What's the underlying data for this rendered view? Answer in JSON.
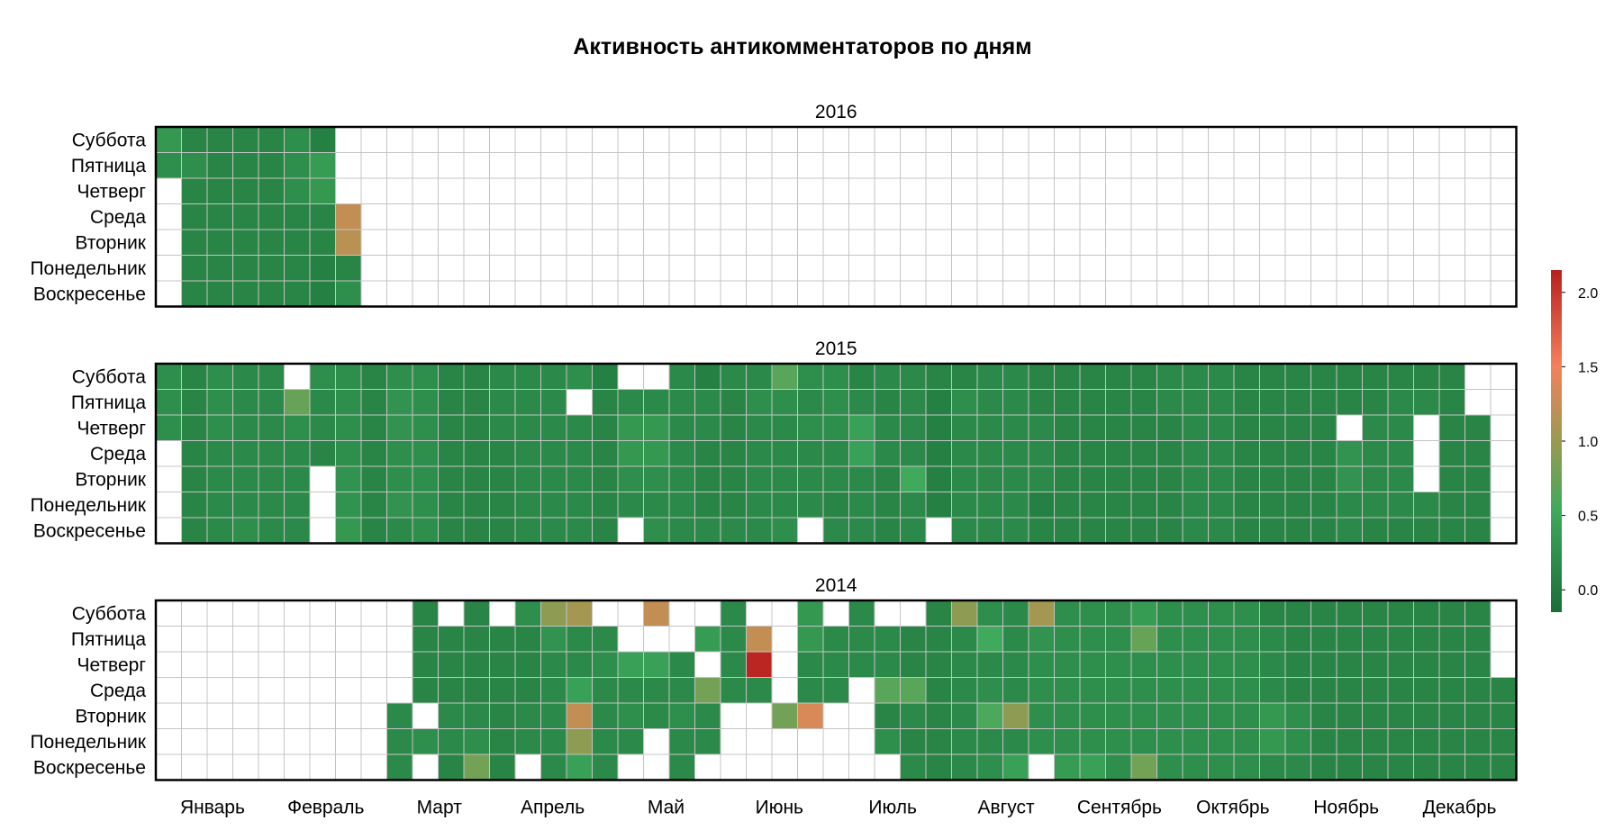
{
  "chart_data": {
    "type": "heatmap",
    "title": "Активность антикомментаторов по дням",
    "row_labels": [
      "Суббота",
      "Пятница",
      "Четверг",
      "Среда",
      "Вторник",
      "Понедельник",
      "Воскресенье"
    ],
    "month_labels": [
      "Январь",
      "Февраль",
      "Март",
      "Апрель",
      "Май",
      "Июнь",
      "Июль",
      "Август",
      "Сентябрь",
      "Октябрь",
      "Ноябрь",
      "Декабрь"
    ],
    "colorbar": {
      "min": -0.15,
      "max": 2.15,
      "ticks": [
        "0.0",
        "0.5",
        "1.0",
        "1.5",
        "2.0"
      ],
      "tick_values": [
        0,
        0.5,
        1,
        1.5,
        2
      ]
    },
    "colors": {
      "low": "#1a6e39",
      "mid": "#3faa5c",
      "olive": "#9a9a50",
      "orange": "#f5805a",
      "high": "#b8201e",
      "empty": "#ffffff",
      "grid": "#c4c4c4"
    },
    "value_notes": "Values are the approx. daily activity level read from the colorbar. Panels list weeks left to right; each week has 7 values ordered Sat..Sun (top to bottom); null = no data / outside year.",
    "panels": [
      {
        "year": "2016",
        "weeks": [
          [
            0.3,
            0.2,
            null,
            null,
            null,
            null,
            null
          ],
          [
            0.1,
            0.2,
            0.1,
            0.1,
            0.1,
            0.1,
            0.1
          ],
          [
            0.1,
            0.1,
            0.1,
            0.1,
            0.1,
            0.1,
            0.1
          ],
          [
            0.1,
            0.1,
            0.1,
            0.1,
            0.1,
            0.1,
            0.1
          ],
          [
            0.1,
            0.1,
            0.1,
            0.1,
            0.1,
            0.1,
            0.1
          ],
          [
            0.2,
            0.2,
            0.2,
            0.1,
            0.1,
            0.1,
            0.1
          ],
          [
            0.05,
            0.35,
            0.3,
            0.1,
            0.1,
            0.05,
            0.05
          ],
          [
            null,
            null,
            null,
            1.05,
            1.0,
            0.1,
            0.2
          ]
        ]
      },
      {
        "year": "2015",
        "weeks": [
          [
            0.2,
            0.2,
            0.2,
            null,
            null,
            null,
            null
          ],
          [
            0.1,
            0.1,
            0.1,
            0.1,
            0.1,
            0.1,
            0.1
          ],
          [
            0.2,
            0.2,
            0.2,
            0.15,
            0.15,
            0.15,
            0.15
          ],
          [
            0.15,
            0.15,
            0.15,
            0.15,
            0.15,
            0.15,
            0.2
          ],
          [
            0.15,
            0.15,
            0.15,
            0.15,
            0.15,
            0.15,
            0.15
          ],
          [
            null,
            0.65,
            0.2,
            0.15,
            0.15,
            0.15,
            0.15
          ],
          [
            0.2,
            0.15,
            0.15,
            0.1,
            null,
            null,
            null
          ],
          [
            0.2,
            0.2,
            0.2,
            0.2,
            0.25,
            0.25,
            0.3
          ],
          [
            0.1,
            0.1,
            0.1,
            0.1,
            0.1,
            0.1,
            0.1
          ],
          [
            0.2,
            0.25,
            0.25,
            0.2,
            0.2,
            0.25,
            0.15
          ],
          [
            0.2,
            0.2,
            0.2,
            0.2,
            0.2,
            0.2,
            0.2
          ],
          [
            0.1,
            0.1,
            0.1,
            0.1,
            0.1,
            0.1,
            0.1
          ],
          [
            0.1,
            0.1,
            0.1,
            0.1,
            0.1,
            0.1,
            0.1
          ],
          [
            0.15,
            0.15,
            0.15,
            0.1,
            0.1,
            0.1,
            0.1
          ],
          [
            0.15,
            0.15,
            0.15,
            0.15,
            0.15,
            0.15,
            0.15
          ],
          [
            0.15,
            0.15,
            0.15,
            0.15,
            0.15,
            0.15,
            0.15
          ],
          [
            0.2,
            null,
            0.15,
            0.15,
            0.15,
            0.15,
            0.15
          ],
          [
            0.05,
            0.1,
            0.1,
            0.1,
            0.1,
            0.1,
            0.1
          ],
          [
            null,
            0.15,
            0.3,
            0.3,
            0.2,
            0.15,
            null
          ],
          [
            null,
            0.15,
            0.3,
            0.3,
            0.2,
            0.15,
            0.2
          ],
          [
            0.15,
            0.15,
            0.15,
            0.15,
            0.15,
            0.15,
            0.15
          ],
          [
            0.05,
            0.15,
            0.15,
            0.1,
            0.1,
            0.1,
            0.15
          ],
          [
            0.15,
            0.1,
            0.1,
            0.1,
            0.1,
            0.1,
            0.15
          ],
          [
            0.15,
            0.2,
            0.15,
            0.15,
            0.15,
            0.15,
            0.15
          ],
          [
            0.6,
            0.2,
            0.15,
            0.15,
            0.15,
            0.15,
            0.2
          ],
          [
            0.2,
            0.15,
            0.2,
            0.15,
            0.15,
            0.15,
            null
          ],
          [
            0.2,
            0.2,
            0.2,
            0.15,
            0.15,
            0.1,
            0.15
          ],
          [
            0.1,
            0.15,
            0.4,
            0.4,
            0.15,
            0.15,
            0.15
          ],
          [
            0.15,
            0.1,
            0.15,
            0.15,
            0.1,
            0.1,
            0.1
          ],
          [
            0.15,
            0.15,
            0.15,
            0.15,
            0.5,
            0.15,
            0.15
          ],
          [
            0.1,
            0.05,
            0.05,
            0.05,
            0.05,
            0.05,
            null
          ],
          [
            0.1,
            0.2,
            0.15,
            0.15,
            0.15,
            0.15,
            0.15
          ],
          [
            0.15,
            0.15,
            0.15,
            0.15,
            0.15,
            0.15,
            0.15
          ],
          [
            0.15,
            0.15,
            0.15,
            0.15,
            0.15,
            0.15,
            0.15
          ],
          [
            0.1,
            0.1,
            0.15,
            0.15,
            0.15,
            0.05,
            0.1
          ],
          [
            0.1,
            0.1,
            0.1,
            0.1,
            0.1,
            0.1,
            0.1
          ],
          [
            0.1,
            0.1,
            0.1,
            0.1,
            0.1,
            0.1,
            0.1
          ],
          [
            0.1,
            0.1,
            0.1,
            0.1,
            0.1,
            0.1,
            0.1
          ],
          [
            0.1,
            0.1,
            0.1,
            0.1,
            0.1,
            0.1,
            0.1
          ],
          [
            0.15,
            0.15,
            0.1,
            0.1,
            0.1,
            0.1,
            0.1
          ],
          [
            0.15,
            0.15,
            0.15,
            0.15,
            0.15,
            0.15,
            0.15
          ],
          [
            0.15,
            0.15,
            0.15,
            0.15,
            0.15,
            0.15,
            0.15
          ],
          [
            0.1,
            0.1,
            0.1,
            0.1,
            0.1,
            0.1,
            0.1
          ],
          [
            0.1,
            0.1,
            0.1,
            0.1,
            0.1,
            0.1,
            0.1
          ],
          [
            0.1,
            0.1,
            0.1,
            0.1,
            0.1,
            0.1,
            0.1
          ],
          [
            0.1,
            0.1,
            0.1,
            0.1,
            0.1,
            0.1,
            0.1
          ],
          [
            0.1,
            0.1,
            null,
            0.25,
            0.25,
            0.15,
            0.15
          ],
          [
            0.1,
            0.1,
            0.15,
            0.15,
            0.15,
            0.15,
            0.1
          ],
          [
            0.1,
            0.15,
            0.15,
            0.15,
            0.15,
            0.15,
            0.1
          ],
          [
            0.1,
            0.15,
            null,
            null,
            null,
            0.15,
            0.1
          ],
          [
            0.1,
            0.1,
            0.1,
            0.1,
            0.1,
            0.1,
            0.1
          ],
          [
            null,
            null,
            0.1,
            0.1,
            0.1,
            0.1,
            0.1
          ]
        ]
      },
      {
        "year": "2014",
        "weeks": [
          [
            null,
            null,
            null,
            null,
            null,
            null,
            null
          ],
          [
            null,
            null,
            null,
            null,
            null,
            null,
            null
          ],
          [
            null,
            null,
            null,
            null,
            null,
            null,
            null
          ],
          [
            null,
            null,
            null,
            null,
            null,
            null,
            null
          ],
          [
            null,
            null,
            null,
            null,
            null,
            null,
            null
          ],
          [
            null,
            null,
            null,
            null,
            null,
            null,
            null
          ],
          [
            null,
            null,
            null,
            null,
            null,
            null,
            null
          ],
          [
            null,
            null,
            null,
            null,
            null,
            null,
            null
          ],
          [
            null,
            null,
            null,
            null,
            null,
            null,
            null
          ],
          [
            null,
            null,
            null,
            null,
            0.15,
            0.15,
            0.15
          ],
          [
            0.1,
            0.1,
            0.1,
            0.1,
            null,
            0.2,
            null
          ],
          [
            null,
            0.1,
            0.1,
            0.1,
            0.15,
            0.15,
            0.1
          ],
          [
            0.1,
            0.1,
            0.1,
            0.1,
            0.15,
            0.2,
            0.7
          ],
          [
            null,
            0.1,
            0.1,
            0.1,
            0.1,
            0.1,
            0.1
          ],
          [
            0.2,
            0.1,
            0.1,
            0.1,
            0.15,
            0.15,
            null
          ],
          [
            0.8,
            0.25,
            0.15,
            0.15,
            0.15,
            0.15,
            0.15
          ],
          [
            0.9,
            0.15,
            0.15,
            0.4,
            1.05,
            0.8,
            0.4
          ],
          [
            null,
            0.15,
            0.2,
            0.15,
            0.15,
            0.15,
            0.15
          ],
          [
            null,
            null,
            0.4,
            0.15,
            0.2,
            0.15,
            null
          ],
          [
            1.05,
            null,
            0.4,
            0.15,
            0.15,
            null,
            null
          ],
          [
            null,
            null,
            0.15,
            0.15,
            0.2,
            0.15,
            0.15
          ],
          [
            null,
            0.35,
            null,
            0.7,
            0.15,
            0.15,
            null
          ],
          [
            0.15,
            0.15,
            0.15,
            0.15,
            null,
            null,
            null
          ],
          [
            null,
            1.05,
            2.1,
            0.15,
            null,
            null,
            null
          ],
          [
            null,
            null,
            null,
            null,
            0.7,
            null,
            null
          ],
          [
            0.3,
            0.3,
            0.15,
            0.15,
            1.15,
            null,
            null
          ],
          [
            null,
            0.15,
            0.15,
            0.15,
            null,
            null,
            null
          ],
          [
            0.15,
            0.15,
            0.15,
            null,
            null,
            null,
            null
          ],
          [
            null,
            0.15,
            0.15,
            0.6,
            0.1,
            0.2,
            null
          ],
          [
            null,
            0.1,
            0.1,
            0.6,
            0.15,
            0.1,
            0.15
          ],
          [
            0.1,
            0.1,
            0.1,
            0.1,
            0.1,
            0.1,
            0.1
          ],
          [
            0.8,
            0.15,
            0.15,
            0.15,
            0.15,
            0.15,
            0.15
          ],
          [
            0.2,
            0.5,
            0.15,
            0.2,
            0.55,
            0.15,
            0.2
          ],
          [
            0.15,
            0.15,
            0.15,
            0.15,
            0.8,
            0.15,
            0.4
          ],
          [
            0.9,
            0.25,
            0.2,
            0.2,
            0.2,
            0.2,
            null
          ],
          [
            0.2,
            0.2,
            0.2,
            0.2,
            0.2,
            0.2,
            0.35
          ],
          [
            0.2,
            0.2,
            0.2,
            0.2,
            0.2,
            0.2,
            0.4
          ],
          [
            0.2,
            0.2,
            0.2,
            0.2,
            0.2,
            0.2,
            0.2
          ],
          [
            0.35,
            0.65,
            0.2,
            0.2,
            0.2,
            0.2,
            0.7
          ],
          [
            0.2,
            0.2,
            0.2,
            0.2,
            0.2,
            0.2,
            0.2
          ],
          [
            0.2,
            0.2,
            0.2,
            0.2,
            0.2,
            0.2,
            0.2
          ],
          [
            0.2,
            0.2,
            0.2,
            0.2,
            0.2,
            0.2,
            0.2
          ],
          [
            0.2,
            0.2,
            0.2,
            0.2,
            0.2,
            0.2,
            0.2
          ],
          [
            0.1,
            0.15,
            0.15,
            0.15,
            0.3,
            0.3,
            0.15
          ],
          [
            0.1,
            0.1,
            0.1,
            0.1,
            0.2,
            0.2,
            0.15
          ],
          [
            0.1,
            0.1,
            0.1,
            0.1,
            0.1,
            0.1,
            0.1
          ],
          [
            0.1,
            0.1,
            0.1,
            0.1,
            0.1,
            0.1,
            0.1
          ],
          [
            0.1,
            0.1,
            0.1,
            0.1,
            0.1,
            0.1,
            0.1
          ],
          [
            0.1,
            0.1,
            0.1,
            0.1,
            0.1,
            0.1,
            0.1
          ],
          [
            0.1,
            0.1,
            0.1,
            0.1,
            0.1,
            0.1,
            0.1
          ],
          [
            0.1,
            0.1,
            0.1,
            0.1,
            0.1,
            0.1,
            0.1
          ],
          [
            0.1,
            0.1,
            0.1,
            0.1,
            0.1,
            0.1,
            0.1
          ],
          [
            null,
            null,
            null,
            0.1,
            0.1,
            0.1,
            0.1
          ]
        ]
      }
    ]
  }
}
